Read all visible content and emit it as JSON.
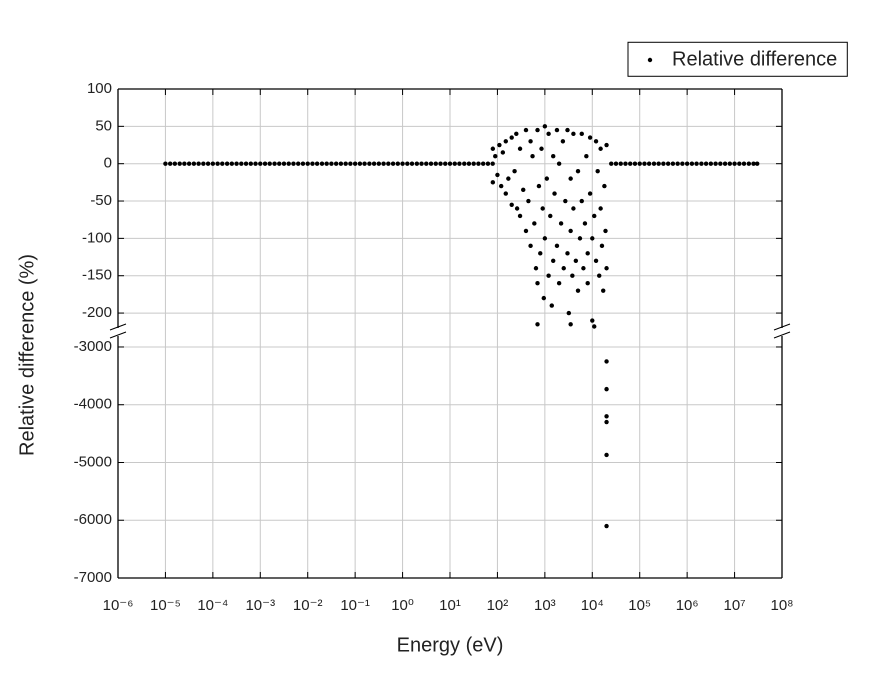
{
  "chart_data": {
    "type": "scatter",
    "x_label": "Energy (eV)",
    "y_label": "Relative difference (%)",
    "xscale": "log",
    "xlim": [
      1e-06,
      100000000.0
    ],
    "xticks": [
      {
        "value": 1e-06,
        "label": "10⁻⁶"
      },
      {
        "value": 1e-05,
        "label": "10⁻⁵"
      },
      {
        "value": 0.0001,
        "label": "10⁻⁴"
      },
      {
        "value": 0.001,
        "label": "10⁻³"
      },
      {
        "value": 0.01,
        "label": "10⁻²"
      },
      {
        "value": 0.1,
        "label": "10⁻¹"
      },
      {
        "value": 1,
        "label": "10⁰"
      },
      {
        "value": 10,
        "label": "10¹"
      },
      {
        "value": 100,
        "label": "10²"
      },
      {
        "value": 1000,
        "label": "10³"
      },
      {
        "value": 10000,
        "label": "10⁴"
      },
      {
        "value": 100000,
        "label": "10⁵"
      },
      {
        "value": 1000000,
        "label": "10⁶"
      },
      {
        "value": 10000000,
        "label": "10⁷"
      },
      {
        "value": 100000000,
        "label": "10⁸"
      }
    ],
    "y_segments": [
      {
        "ylim": [
          -220,
          100
        ],
        "yticks": [
          100,
          50,
          0,
          -50,
          -100,
          -150,
          -200
        ]
      },
      {
        "ylim": [
          -7000,
          -2810
        ],
        "yticks": [
          -3000,
          -4000,
          -5000,
          -6000,
          -7000
        ]
      }
    ],
    "grid": true,
    "legend": "top-right",
    "series": [
      {
        "name": "Relative difference",
        "color": "#000000",
        "x": [
          1e-05,
          1.26e-05,
          1.58e-05,
          2e-05,
          2.51e-05,
          3.16e-05,
          3.98e-05,
          5.01e-05,
          6.31e-05,
          7.94e-05,
          0.0001,
          0.000126,
          0.000158,
          0.0002,
          0.000251,
          0.000316,
          0.000398,
          0.000501,
          0.000631,
          0.000794,
          0.001,
          0.00126,
          0.00158,
          0.002,
          0.00251,
          0.00316,
          0.00398,
          0.00501,
          0.00631,
          0.00794,
          0.01,
          0.0126,
          0.0158,
          0.02,
          0.0251,
          0.0316,
          0.0398,
          0.0501,
          0.0631,
          0.0794,
          0.1,
          0.126,
          0.158,
          0.2,
          0.251,
          0.316,
          0.398,
          0.501,
          0.631,
          0.794,
          1,
          1.26,
          1.58,
          2,
          2.51,
          3.16,
          3.98,
          5.01,
          6.31,
          7.94,
          10,
          12.6,
          15.8,
          20,
          25.1,
          31.6,
          39.8,
          50.1,
          63.1,
          79.4,
          25100.0,
          31600.0,
          39800.0,
          50100.0,
          63100.0,
          79400.0,
          100000.0,
          126000.0,
          158000.0,
          200000.0,
          251000.0,
          316000.0,
          398000.0,
          501000.0,
          631000.0,
          794000.0,
          1000000.0,
          1260000.0,
          1580000.0,
          2000000.0,
          2510000.0,
          3160000.0,
          3980000.0,
          5010000.0,
          6310000.0,
          7940000.0,
          10000000.0,
          12600000.0,
          15800000.0,
          20000000.0,
          25100000.0,
          30000000.0,
          80,
          80,
          90,
          100,
          110,
          120,
          130,
          150,
          150,
          170,
          200,
          200,
          230,
          250,
          260,
          300,
          300,
          350,
          400,
          400,
          450,
          500,
          500,
          550,
          600,
          650,
          700,
          700,
          750,
          800,
          850,
          900,
          950,
          1000,
          1000,
          1100,
          1200,
          1200,
          1300,
          1400,
          1500,
          1500,
          1600,
          1800,
          1800,
          2000,
          2000,
          2200,
          2400,
          2500,
          2700,
          3000,
          3000,
          3200,
          3500,
          3500,
          3800,
          4000,
          4000,
          4500,
          5000,
          5000,
          5500,
          6000,
          6000,
          6500,
          7000,
          7500,
          8000,
          8000,
          9000,
          9000,
          10000,
          10000,
          11000,
          12000,
          12000,
          13000,
          14000,
          15000,
          15000,
          16000,
          17000,
          18000,
          19000,
          20000,
          20000,
          700,
          3500,
          11000,
          20000,
          20000,
          20000,
          20000,
          20000,
          20000
        ],
        "values": [
          0,
          0,
          0,
          0,
          0,
          0,
          0,
          0,
          0,
          0,
          0,
          0,
          0,
          0,
          0,
          0,
          0,
          0,
          0,
          0,
          0,
          0,
          0,
          0,
          0,
          0,
          0,
          0,
          0,
          0,
          0,
          0,
          0,
          0,
          0,
          0,
          0,
          0,
          0,
          0,
          0,
          0,
          0,
          0,
          0,
          0,
          0,
          0,
          0,
          0,
          0,
          0,
          0,
          0,
          0,
          0,
          0,
          0,
          0,
          0,
          0,
          0,
          0,
          0,
          0,
          0,
          0,
          0,
          0,
          0,
          0,
          0,
          0,
          0,
          0,
          0,
          0,
          0,
          0,
          0,
          0,
          0,
          0,
          0,
          0,
          0,
          0,
          0,
          0,
          0,
          0,
          0,
          0,
          0,
          0,
          0,
          0,
          0,
          0,
          0,
          0,
          0,
          20,
          -25,
          10,
          -15,
          25,
          -30,
          15,
          -40,
          30,
          -20,
          35,
          -55,
          -10,
          40,
          -60,
          20,
          -70,
          -35,
          45,
          -90,
          -50,
          30,
          -110,
          10,
          -80,
          -140,
          45,
          -160,
          -30,
          -120,
          20,
          -60,
          -180,
          50,
          -100,
          -20,
          -150,
          40,
          -70,
          -190,
          10,
          -130,
          -40,
          45,
          -110,
          -160,
          0,
          -80,
          30,
          -140,
          -50,
          45,
          -120,
          -200,
          -20,
          -90,
          -150,
          40,
          -60,
          -130,
          -10,
          -170,
          -100,
          40,
          -50,
          -140,
          -80,
          10,
          -120,
          -160,
          35,
          -40,
          -100,
          -210,
          -70,
          30,
          -130,
          -10,
          -150,
          -60,
          20,
          -110,
          -170,
          -30,
          -90,
          25,
          -140,
          -215,
          -215,
          -218,
          -3250,
          -3730,
          -4200,
          -4300,
          -4870,
          -6100
        ]
      }
    ]
  }
}
